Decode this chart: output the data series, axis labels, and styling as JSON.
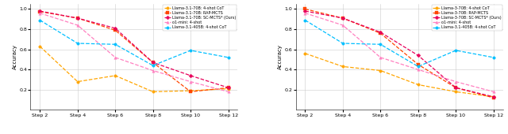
{
  "x_labels": [
    "Step 2",
    "Step 4",
    "Step 6",
    "Step 8",
    "Step 10",
    "Step 12"
  ],
  "x_values": [
    2,
    4,
    6,
    8,
    10,
    12
  ],
  "left_series": [
    {
      "label": "Llama-3.1-70B: 4-shot CoT",
      "color": "#FFA500",
      "marker": "o",
      "values": [
        0.63,
        0.28,
        0.34,
        0.18,
        0.19,
        0.21
      ]
    },
    {
      "label": "Llama-3.1-70B: RAP-MCTS",
      "color": "#FF4500",
      "marker": "s",
      "values": [
        0.975,
        0.91,
        0.79,
        0.47,
        0.18,
        0.22
      ]
    },
    {
      "label": "Llama-3.1-70B: SC-MCTS* (Ours)",
      "color": "#E8005A",
      "marker": "D",
      "values": [
        0.98,
        0.91,
        0.81,
        0.47,
        0.34,
        0.22
      ]
    },
    {
      "label": "o1-mini: 4-shot",
      "color": "#FF80C0",
      "marker": "^",
      "values": [
        0.96,
        0.84,
        0.52,
        0.39,
        0.28,
        0.18
      ]
    },
    {
      "label": "Llama-3.1-405B: 4-shot CoT",
      "color": "#00BFFF",
      "marker": "o",
      "values": [
        0.89,
        0.66,
        0.65,
        0.44,
        0.59,
        0.52
      ]
    }
  ],
  "right_series": [
    {
      "label": "Llama-3-70B: 4-shot CoT",
      "color": "#FFA500",
      "marker": "o",
      "values": [
        0.56,
        0.43,
        0.39,
        0.25,
        0.18,
        0.13
      ]
    },
    {
      "label": "Llama-3-70B: RAP-MCTS",
      "color": "#FF4500",
      "marker": "s",
      "values": [
        1.0,
        0.91,
        0.76,
        0.45,
        0.22,
        0.12
      ]
    },
    {
      "label": "Llama-3-70B: SC-MCTS* (Ours)",
      "color": "#E8005A",
      "marker": "D",
      "values": [
        0.98,
        0.91,
        0.77,
        0.54,
        0.22,
        0.13
      ]
    },
    {
      "label": "o1-mini: 4-shot",
      "color": "#FF80C0",
      "marker": "^",
      "values": [
        0.96,
        0.84,
        0.52,
        0.4,
        0.28,
        0.18
      ]
    },
    {
      "label": "Llama-3.1-405B: 4-shot CoT",
      "color": "#00BFFF",
      "marker": "o",
      "values": [
        0.89,
        0.66,
        0.65,
        0.43,
        0.59,
        0.52
      ]
    }
  ],
  "ylabel": "Accuracy",
  "background": "#ffffff",
  "grid_color": "#cccccc"
}
